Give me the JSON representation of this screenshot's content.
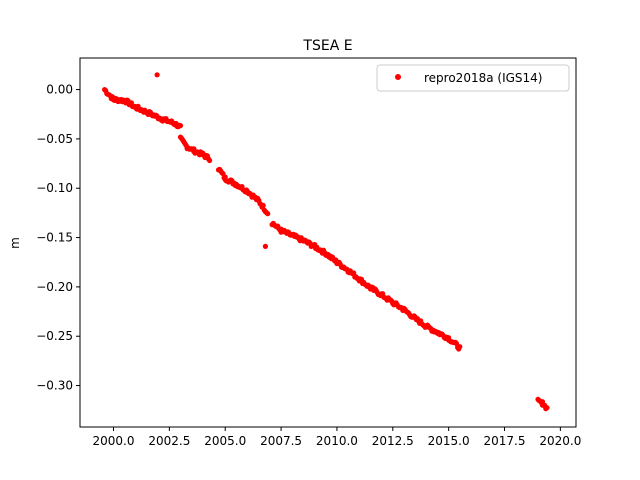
{
  "chart_data": {
    "type": "scatter",
    "title": "TSEA E",
    "xlabel": "",
    "ylabel": "m",
    "xlim": [
      1998.5,
      2020.7
    ],
    "ylim": [
      -0.342,
      0.032
    ],
    "xticks": [
      2000.0,
      2002.5,
      2005.0,
      2007.5,
      2010.0,
      2012.5,
      2015.0,
      2017.5,
      2020.0
    ],
    "xtick_labels": [
      "2000.0",
      "2002.5",
      "2005.0",
      "2007.5",
      "2010.0",
      "2012.5",
      "2015.0",
      "2017.5",
      "2020.0"
    ],
    "yticks": [
      0.0,
      -0.05,
      -0.1,
      -0.15,
      -0.2,
      -0.25,
      -0.3
    ],
    "ytick_labels": [
      "0.00",
      "−0.05",
      "−0.10",
      "−0.15",
      "−0.20",
      "−0.25",
      "−0.30"
    ],
    "grid": false,
    "legend_position": "upper-right",
    "series": [
      {
        "name": "repro2018a (IGS14)",
        "color": "#ff0000",
        "marker": "circle",
        "segments": [
          {
            "x": [
              1999.6,
              2000.0,
              2000.5,
              2001.0,
              2001.6,
              2002.2,
              2002.7,
              2003.0
            ],
            "y": [
              0.0,
              -0.01,
              -0.011,
              -0.018,
              -0.024,
              -0.03,
              -0.034,
              -0.038
            ]
          },
          {
            "x": [
              2003.0,
              2003.3,
              2003.6,
              2004.0,
              2004.3
            ],
            "y": [
              -0.05,
              -0.058,
              -0.062,
              -0.066,
              -0.07
            ]
          },
          {
            "x": [
              2004.7,
              2005.0,
              2005.5,
              2006.0,
              2006.5,
              2006.9
            ],
            "y": [
              -0.08,
              -0.09,
              -0.096,
              -0.103,
              -0.113,
              -0.125
            ]
          },
          {
            "x": [
              2007.1,
              2007.5,
              2008.0,
              2008.5,
              2009.0,
              2009.5,
              2010.0,
              2010.5,
              2011.0,
              2011.5,
              2012.0,
              2012.5,
              2013.0,
              2013.5,
              2014.0,
              2014.5,
              2015.0,
              2015.5
            ],
            "y": [
              -0.135,
              -0.143,
              -0.148,
              -0.153,
              -0.159,
              -0.166,
              -0.175,
              -0.183,
              -0.192,
              -0.201,
              -0.208,
              -0.216,
              -0.223,
              -0.232,
              -0.24,
              -0.246,
              -0.252,
              -0.262
            ]
          },
          {
            "x": [
              2019.0,
              2019.2,
              2019.4
            ],
            "y": [
              -0.316,
              -0.318,
              -0.323
            ]
          }
        ],
        "outliers": [
          {
            "x": 2001.95,
            "y": 0.015
          },
          {
            "x": 2006.8,
            "y": -0.159
          }
        ]
      }
    ]
  }
}
